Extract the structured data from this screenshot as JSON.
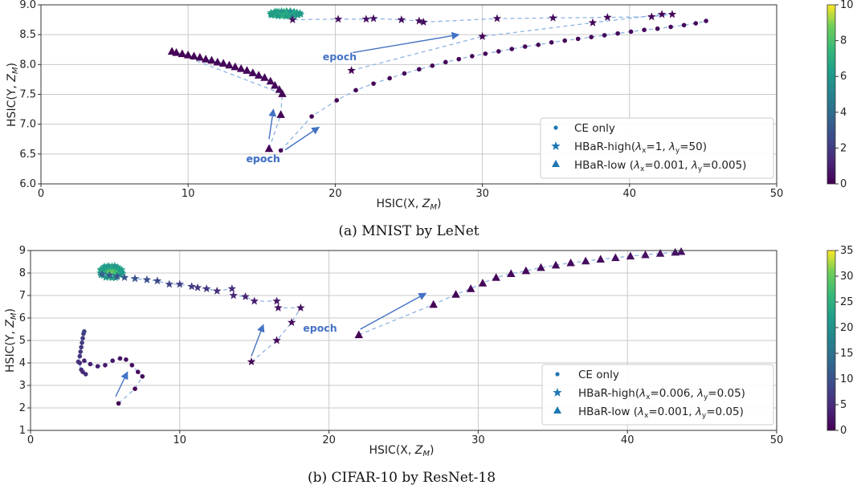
{
  "chart_data": [
    {
      "type": "scatter",
      "caption": "(a) MNIST by LeNet",
      "xlabel": "HSIC(X, Z_M)",
      "ylabel": "HSIC(Y, Z_M)",
      "xlim": [
        0,
        50
      ],
      "ylim": [
        6.0,
        9.0
      ],
      "xticks": [
        "0",
        "10",
        "20",
        "30",
        "40",
        "50"
      ],
      "yticks": [
        "6.0",
        "6.5",
        "7.0",
        "7.5",
        "8.0",
        "8.5",
        "9.0"
      ],
      "grid": true,
      "legend_position": "bottom-right",
      "colorbar": {
        "min": 0,
        "max": 10,
        "ticks": [
          "0",
          "2",
          "4",
          "6",
          "8",
          "10"
        ]
      },
      "annotations": [
        {
          "text": "epoch",
          "x": 20.3,
          "y": 8.07,
          "arrow_from": [
            21.2,
            8.2
          ],
          "arrow_to": [
            28.4,
            8.5
          ]
        },
        {
          "text": "epoch",
          "x": 15.1,
          "y": 6.36,
          "arrow_from": [
            15.5,
            6.75
          ],
          "arrow_to": [
            15.8,
            7.25
          ]
        },
        {
          "text": "epoch",
          "x": 15.1,
          "y": 6.36,
          "arrow_from": [
            16.6,
            6.57
          ],
          "arrow_to": [
            18.9,
            6.95
          ]
        }
      ],
      "series": [
        {
          "name": "CE only",
          "marker": "circle",
          "color_min": 0,
          "color_max": 0.3,
          "points": [
            [
              16.3,
              6.56
            ],
            [
              18.4,
              7.13
            ],
            [
              20.1,
              7.4
            ],
            [
              21.4,
              7.57
            ],
            [
              22.6,
              7.68
            ],
            [
              23.7,
              7.77
            ],
            [
              24.7,
              7.85
            ],
            [
              25.7,
              7.92
            ],
            [
              26.6,
              7.98
            ],
            [
              27.5,
              8.04
            ],
            [
              28.4,
              8.09
            ],
            [
              29.3,
              8.14
            ],
            [
              30.2,
              8.18
            ],
            [
              31.1,
              8.22
            ],
            [
              32.0,
              8.26
            ],
            [
              32.9,
              8.3
            ],
            [
              33.8,
              8.33
            ],
            [
              34.7,
              8.37
            ],
            [
              35.6,
              8.4
            ],
            [
              36.5,
              8.43
            ],
            [
              37.4,
              8.46
            ],
            [
              38.3,
              8.49
            ],
            [
              39.2,
              8.52
            ],
            [
              40.1,
              8.55
            ],
            [
              41.0,
              8.58
            ],
            [
              41.9,
              8.6
            ],
            [
              42.8,
              8.63
            ],
            [
              43.7,
              8.66
            ],
            [
              44.5,
              8.69
            ],
            [
              45.2,
              8.73
            ]
          ]
        },
        {
          "name": "HBaR-high(λx=1, λy=50)",
          "marker": "star",
          "color_min": 0,
          "color_max": 0.6,
          "points": [
            [
              21.1,
              7.9
            ],
            [
              30.0,
              8.47
            ],
            [
              37.5,
              8.7
            ],
            [
              42.2,
              8.84
            ],
            [
              42.9,
              8.84
            ],
            [
              41.5,
              8.8
            ],
            [
              38.5,
              8.79
            ],
            [
              34.8,
              8.78
            ],
            [
              31.0,
              8.77
            ],
            [
              26.0,
              8.71
            ],
            [
              25.7,
              8.73
            ],
            [
              24.5,
              8.75
            ],
            [
              22.6,
              8.77
            ],
            [
              22.1,
              8.76
            ],
            [
              20.2,
              8.76
            ],
            [
              17.1,
              8.75
            ]
          ]
        },
        {
          "name": "HBaR-low (λx=0.001, λy=0.005)",
          "marker": "triangle",
          "color_min": 0,
          "color_max": 0.3,
          "points": [
            [
              15.5,
              6.59
            ],
            [
              16.3,
              7.16
            ],
            [
              16.4,
              7.51
            ],
            [
              8.9,
              8.22
            ],
            [
              9.2,
              8.2
            ],
            [
              9.6,
              8.18
            ],
            [
              10.0,
              8.16
            ],
            [
              10.4,
              8.14
            ],
            [
              10.8,
              8.12
            ],
            [
              11.2,
              8.09
            ],
            [
              11.6,
              8.07
            ],
            [
              12.0,
              8.04
            ],
            [
              12.4,
              8.02
            ],
            [
              12.8,
              7.99
            ],
            [
              13.2,
              7.96
            ],
            [
              13.6,
              7.93
            ],
            [
              14.0,
              7.9
            ],
            [
              14.4,
              7.86
            ],
            [
              14.8,
              7.82
            ],
            [
              15.2,
              7.78
            ],
            [
              15.6,
              7.72
            ],
            [
              15.9,
              7.65
            ],
            [
              16.2,
              7.58
            ]
          ]
        }
      ]
    },
    {
      "type": "scatter",
      "caption": "(b) CIFAR-10 by ResNet-18",
      "xlabel": "HSIC(X, Z_M)",
      "ylabel": "HSIC(Y, Z_M)",
      "xlim": [
        0,
        50
      ],
      "ylim": [
        1,
        9
      ],
      "xticks": [
        "0",
        "10",
        "20",
        "30",
        "40",
        "50"
      ],
      "yticks": [
        "1",
        "2",
        "3",
        "4",
        "5",
        "6",
        "7",
        "8",
        "9"
      ],
      "grid": true,
      "legend_position": "bottom-right",
      "colorbar": {
        "min": 0,
        "max": 35,
        "ticks": [
          "0",
          "5",
          "10",
          "15",
          "20",
          "25",
          "30",
          "35"
        ]
      },
      "annotations": [
        {
          "text": "epoch",
          "x": 19.4,
          "y": 5.4,
          "arrow_from": [
            22.1,
            5.5
          ],
          "arrow_to": [
            26.5,
            7.1
          ]
        },
        {
          "text": "",
          "x": 0,
          "y": 0,
          "arrow_from": [
            14.8,
            4.3
          ],
          "arrow_to": [
            15.6,
            5.7
          ]
        },
        {
          "text": "",
          "x": 0,
          "y": 0,
          "arrow_from": [
            5.7,
            2.5
          ],
          "arrow_to": [
            6.5,
            3.6
          ]
        }
      ],
      "series": [
        {
          "name": "CE only",
          "marker": "circle",
          "color_min": 0,
          "color_max": 8,
          "points": [
            [
              5.9,
              2.2
            ],
            [
              7.0,
              2.85
            ],
            [
              7.5,
              3.4
            ],
            [
              7.2,
              3.6
            ],
            [
              6.8,
              3.9
            ],
            [
              6.4,
              4.15
            ],
            [
              6.0,
              4.2
            ],
            [
              5.5,
              4.1
            ],
            [
              5.0,
              3.9
            ],
            [
              4.5,
              3.85
            ],
            [
              4.0,
              3.95
            ],
            [
              3.6,
              4.1
            ],
            [
              3.3,
              4.0
            ],
            [
              3.5,
              3.6
            ],
            [
              3.7,
              3.5
            ],
            [
              3.4,
              3.7
            ],
            [
              3.2,
              4.05
            ],
            [
              3.3,
              4.3
            ],
            [
              3.35,
              4.5
            ],
            [
              3.4,
              4.7
            ],
            [
              3.45,
              4.9
            ],
            [
              3.5,
              5.1
            ],
            [
              3.55,
              5.3
            ],
            [
              3.6,
              5.4
            ]
          ]
        },
        {
          "name": "HBaR-high(λx=0.006, λy=0.05)",
          "marker": "star",
          "color_min": 0,
          "color_max": 12,
          "points": [
            [
              14.8,
              4.05
            ],
            [
              16.5,
              5.0
            ],
            [
              17.5,
              5.8
            ],
            [
              18.1,
              6.45
            ],
            [
              16.6,
              6.45
            ],
            [
              16.5,
              6.75
            ],
            [
              15.0,
              6.75
            ],
            [
              14.4,
              6.95
            ],
            [
              13.6,
              7.0
            ],
            [
              13.5,
              7.3
            ],
            [
              12.5,
              7.2
            ],
            [
              11.8,
              7.3
            ],
            [
              11.2,
              7.35
            ],
            [
              10.8,
              7.4
            ],
            [
              10.0,
              7.5
            ],
            [
              9.3,
              7.5
            ],
            [
              8.5,
              7.65
            ],
            [
              7.8,
              7.7
            ],
            [
              7.0,
              7.75
            ],
            [
              6.3,
              7.8
            ],
            [
              5.8,
              7.85
            ],
            [
              5.3,
              7.9
            ],
            [
              4.8,
              7.95
            ]
          ]
        },
        {
          "name": "HBaR-low (λx=0.001, λy=0.05)",
          "marker": "triangle",
          "color_min": 0,
          "color_max": 2,
          "points": [
            [
              22.0,
              5.25
            ],
            [
              27.0,
              6.6
            ],
            [
              28.5,
              7.05
            ],
            [
              29.5,
              7.3
            ],
            [
              30.3,
              7.55
            ],
            [
              31.2,
              7.8
            ],
            [
              32.2,
              7.97
            ],
            [
              33.2,
              8.1
            ],
            [
              34.2,
              8.24
            ],
            [
              35.2,
              8.35
            ],
            [
              36.2,
              8.45
            ],
            [
              37.2,
              8.53
            ],
            [
              38.2,
              8.61
            ],
            [
              39.2,
              8.68
            ],
            [
              40.2,
              8.75
            ],
            [
              41.2,
              8.81
            ],
            [
              42.2,
              8.87
            ],
            [
              43.2,
              8.92
            ],
            [
              43.6,
              8.95
            ]
          ]
        }
      ]
    }
  ]
}
